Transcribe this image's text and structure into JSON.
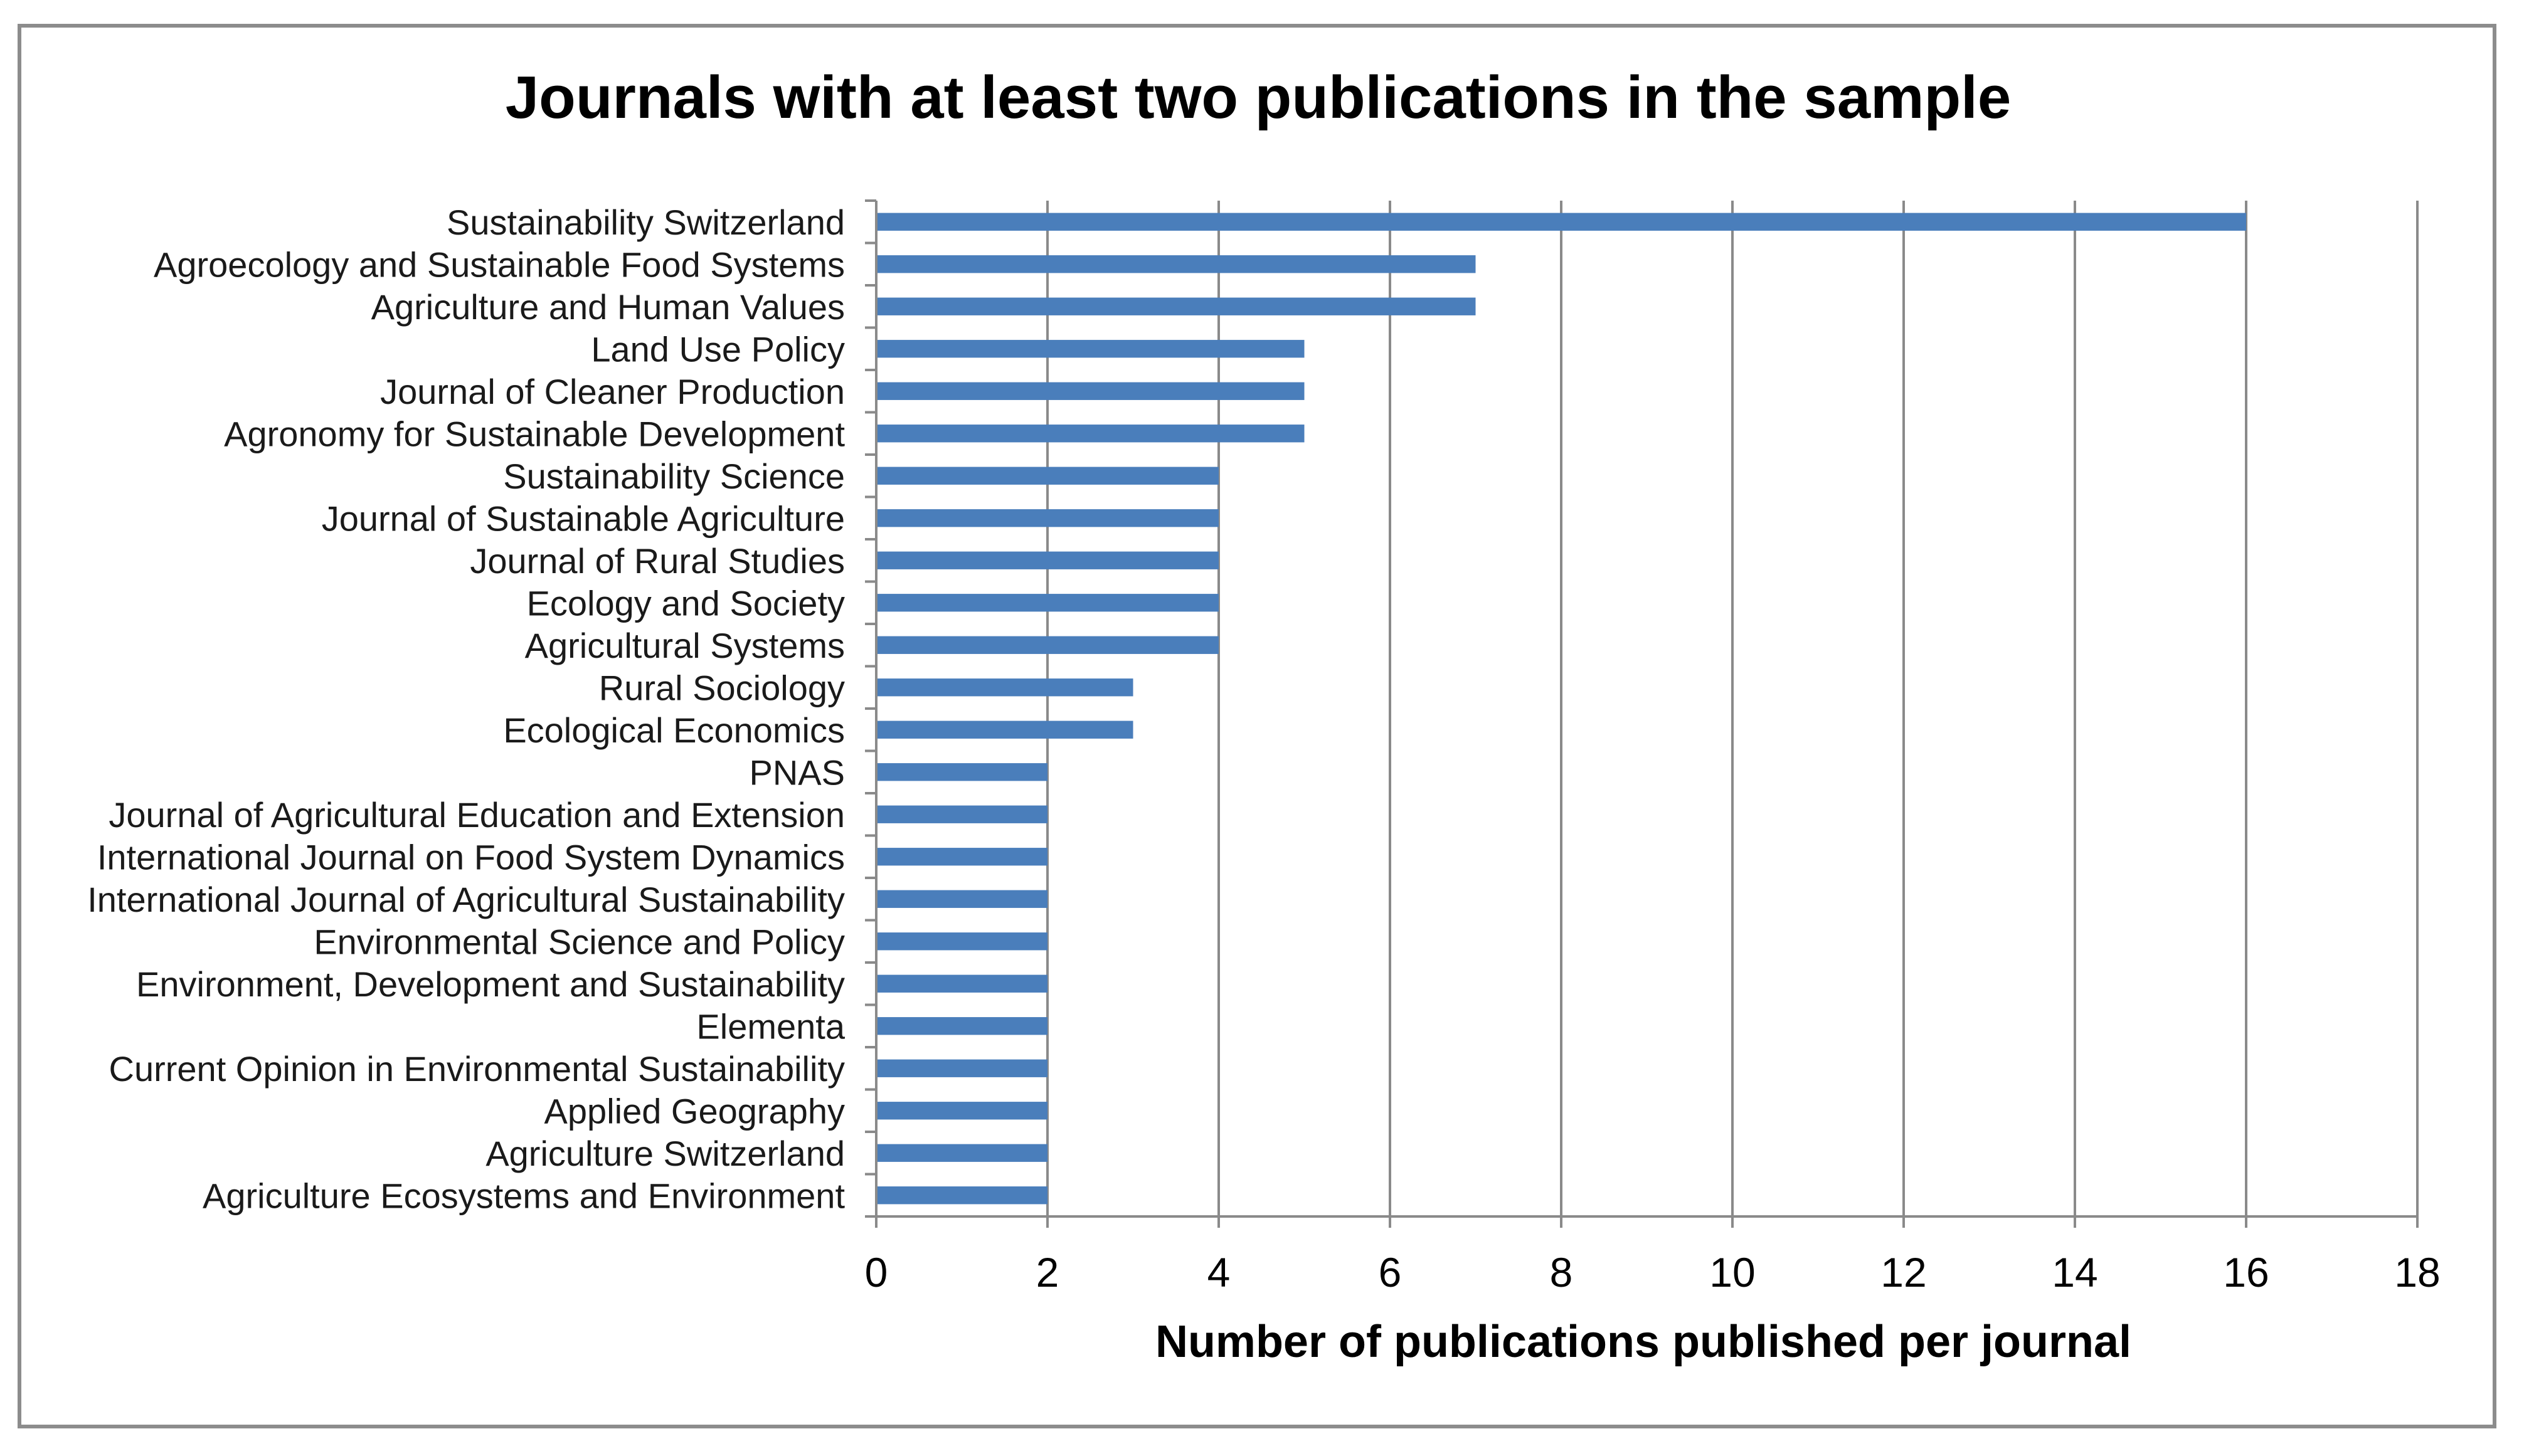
{
  "chart_data": {
    "type": "bar",
    "orientation": "horizontal",
    "title": "Journals with at least two publications in the sample",
    "xlabel": "Number of publications published per journal",
    "ylabel": "",
    "xlim": [
      0,
      18
    ],
    "x_ticks": [
      0,
      2,
      4,
      6,
      8,
      10,
      12,
      14,
      16,
      18
    ],
    "grid": "vertical",
    "legend": "none",
    "bar_color": "#4a7ebb",
    "categories": [
      "Sustainability Switzerland",
      "Agroecology and Sustainable Food Systems",
      "Agriculture and Human Values",
      "Land Use Policy",
      "Journal of Cleaner Production",
      "Agronomy for Sustainable Development",
      "Sustainability Science",
      "Journal of Sustainable Agriculture",
      "Journal of Rural Studies",
      "Ecology and Society",
      "Agricultural Systems",
      "Rural Sociology",
      "Ecological Economics",
      "PNAS",
      "Journal of Agricultural Education and Extension",
      "International Journal on Food System Dynamics",
      "International Journal of Agricultural Sustainability",
      "Environmental Science and Policy",
      "Environment, Development and Sustainability",
      "Elementa",
      "Current Opinion in Environmental Sustainability",
      "Applied Geography",
      "Agriculture Switzerland",
      "Agriculture Ecosystems and Environment"
    ],
    "values": [
      16,
      7,
      7,
      5,
      5,
      5,
      4,
      4,
      4,
      4,
      4,
      3,
      3,
      2,
      2,
      2,
      2,
      2,
      2,
      2,
      2,
      2,
      2,
      2
    ]
  }
}
